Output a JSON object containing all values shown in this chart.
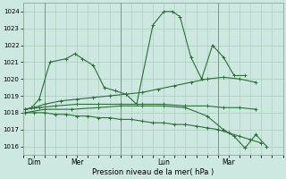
{
  "bg_color": "#cce8e0",
  "grid_color": "#aaccbb",
  "line_color": "#2d6e3a",
  "xlabel": "Pression niveau de la mer( hPa )",
  "ylim": [
    1015.5,
    1024.5
  ],
  "yticks": [
    1016,
    1017,
    1018,
    1019,
    1020,
    1021,
    1022,
    1023,
    1024
  ],
  "day_labels": [
    "Dim",
    "Mer",
    "Lun",
    "Mar"
  ],
  "day_positions": [
    1,
    5,
    13,
    19
  ],
  "vline_positions": [
    2,
    9,
    18
  ],
  "xlim": [
    0,
    24
  ],
  "series": [
    {
      "x": [
        0.2,
        0.8,
        1.5,
        2.5,
        4.0,
        4.8,
        5.5,
        6.5,
        7.5,
        8.5,
        9.5,
        10.5,
        12.0,
        13.0,
        13.8,
        14.5,
        15.5,
        16.5,
        17.5,
        18.5,
        19.5,
        20.5
      ],
      "y": [
        1018.2,
        1018.3,
        1018.8,
        1021.0,
        1021.2,
        1021.5,
        1021.2,
        1020.8,
        1019.5,
        1019.3,
        1019.1,
        1018.5,
        1023.2,
        1024.0,
        1024.0,
        1023.7,
        1021.3,
        1020.0,
        1022.0,
        1021.3,
        1020.2,
        1020.2
      ]
    },
    {
      "x": [
        0.2,
        1.0,
        2.0,
        3.0,
        4.0,
        5.0,
        6.0,
        7.0,
        8.0,
        9.0,
        10.0,
        11.0,
        12.0,
        13.0,
        14.0,
        15.0,
        16.0,
        17.0,
        18.0,
        19.0,
        20.0,
        21.0,
        22.0
      ],
      "y": [
        1018.0,
        1018.0,
        1018.0,
        1017.9,
        1017.9,
        1017.8,
        1017.8,
        1017.7,
        1017.7,
        1017.6,
        1017.6,
        1017.5,
        1017.4,
        1017.4,
        1017.3,
        1017.3,
        1017.2,
        1017.1,
        1017.0,
        1016.8,
        1016.6,
        1016.4,
        1016.2
      ]
    },
    {
      "x": [
        0.2,
        1.0,
        2.0,
        3.5,
        5.0,
        6.5,
        8.0,
        9.5,
        11.0,
        12.5,
        14.0,
        15.5,
        17.0,
        18.5,
        20.0,
        21.5
      ],
      "y": [
        1018.2,
        1018.3,
        1018.5,
        1018.7,
        1018.8,
        1018.9,
        1019.0,
        1019.1,
        1019.2,
        1019.4,
        1019.6,
        1019.8,
        1020.0,
        1020.1,
        1020.0,
        1019.8
      ]
    },
    {
      "x": [
        0.2,
        1.5,
        3.0,
        5.0,
        7.0,
        9.0,
        11.0,
        13.0,
        15.0,
        17.0,
        18.5,
        20.0,
        21.5
      ],
      "y": [
        1018.2,
        1018.3,
        1018.4,
        1018.5,
        1018.5,
        1018.5,
        1018.5,
        1018.5,
        1018.4,
        1018.4,
        1018.3,
        1018.3,
        1018.2
      ]
    },
    {
      "x": [
        0.2,
        2.0,
        4.5,
        7.0,
        9.0,
        11.0,
        13.0,
        15.0,
        17.0,
        18.5,
        19.5,
        20.5,
        21.5,
        22.5
      ],
      "y": [
        1018.0,
        1018.2,
        1018.2,
        1018.3,
        1018.4,
        1018.4,
        1018.4,
        1018.3,
        1017.8,
        1017.0,
        1016.6,
        1015.9,
        1016.7,
        1016.0
      ]
    }
  ]
}
